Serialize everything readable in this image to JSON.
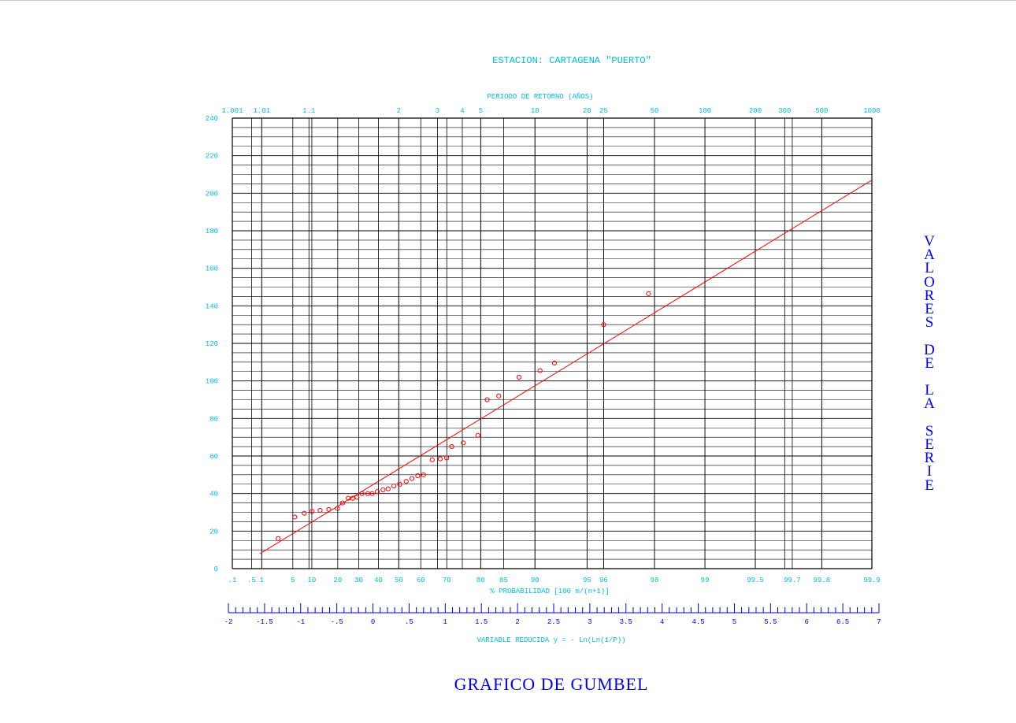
{
  "chart_data": {
    "type": "scatter",
    "title": "ESTACION: CARTAGENA \"PUERTO\"",
    "top_axis": {
      "label": "PERIODO DE RETORNO (AÑOS)",
      "ticks": [
        {
          "label": "1.001",
          "y": -1.933
        },
        {
          "label": "1.01",
          "y": -1.527
        },
        {
          "label": "1.1",
          "y": -0.874
        },
        {
          "label": "2",
          "y": 0.367
        },
        {
          "label": "3",
          "y": 0.903
        },
        {
          "label": "4",
          "y": 1.246
        },
        {
          "label": "5",
          "y": 1.5
        },
        {
          "label": "10",
          "y": 2.25
        },
        {
          "label": "20",
          "y": 2.97
        },
        {
          "label": "25",
          "y": 3.199
        },
        {
          "label": "50",
          "y": 3.902
        },
        {
          "label": "100",
          "y": 4.6
        },
        {
          "label": "200",
          "y": 5.296
        },
        {
          "label": "300",
          "y": 5.702
        },
        {
          "label": "500",
          "y": 6.214
        },
        {
          "label": "1000",
          "y": 6.907
        }
      ]
    },
    "bottom_axis": {
      "label": "% PROBABILIDAD  [100 m/(n+1)]",
      "ticks": [
        {
          "label": ".1",
          "y": -1.933
        },
        {
          "label": ".5",
          "y": -1.667
        },
        {
          "label": "1",
          "y": -1.527
        },
        {
          "label": "5",
          "y": -1.097
        },
        {
          "label": "10",
          "y": -0.834
        },
        {
          "label": "20",
          "y": -0.476
        },
        {
          "label": "30",
          "y": -0.186
        },
        {
          "label": "40",
          "y": 0.087
        },
        {
          "label": "50",
          "y": 0.367
        },
        {
          "label": "60",
          "y": 0.672
        },
        {
          "label": "70",
          "y": 1.031
        },
        {
          "label": "80",
          "y": 1.5
        },
        {
          "label": "85",
          "y": 1.817
        },
        {
          "label": "90",
          "y": 2.25
        },
        {
          "label": "95",
          "y": 2.97
        },
        {
          "label": "96",
          "y": 3.199
        },
        {
          "label": "98",
          "y": 3.902
        },
        {
          "label": "99",
          "y": 4.6
        },
        {
          "label": "99.5",
          "y": 5.296
        },
        {
          "label": "99.7",
          "y": 5.807
        },
        {
          "label": "99.8",
          "y": 6.214
        },
        {
          "label": "99.9",
          "y": 6.907
        }
      ]
    },
    "reduced_axis": {
      "label": "VARIABLE REDUCIDA   y = - Ln(Ln(1/P))",
      "range": [
        -2,
        7
      ],
      "labels": [
        "-2",
        "-1.5",
        "-1",
        "-.5",
        "0",
        ".5",
        "1",
        "1.5",
        "2",
        "2.5",
        "3",
        "3.5",
        "4",
        "4.5",
        "5",
        "5.5",
        "6",
        "6.5",
        "7"
      ]
    },
    "y_axis": {
      "label": "VALORES DE LA SERIE",
      "ylim": [
        0,
        240
      ],
      "ticks": [
        0,
        20,
        40,
        60,
        80,
        100,
        120,
        140,
        160,
        180,
        200,
        220,
        240
      ]
    },
    "fit_line": {
      "x": [
        -1.55,
        6.907
      ],
      "y": [
        8,
        207
      ]
    },
    "points": {
      "x": [
        -1.3,
        -1.07,
        -0.94,
        -0.83,
        -0.72,
        -0.6,
        -0.48,
        -0.41,
        -0.33,
        -0.27,
        -0.21,
        -0.14,
        -0.06,
        0.0,
        0.07,
        0.15,
        0.22,
        0.3,
        0.38,
        0.47,
        0.55,
        0.63,
        0.71,
        0.83,
        0.94,
        1.03,
        1.1,
        1.26,
        1.46,
        1.59,
        1.75,
        2.03,
        2.32,
        2.52,
        3.2,
        3.82
      ],
      "y": [
        16,
        27.5,
        29.5,
        30.5,
        31,
        31.5,
        32,
        35,
        37.5,
        37.5,
        38,
        40,
        40,
        40,
        41,
        42,
        42.5,
        44,
        45,
        46.5,
        48,
        49.5,
        50,
        58,
        58.5,
        59,
        65,
        67,
        71,
        90,
        92,
        102,
        105.5,
        109.5,
        130,
        146.5
      ]
    },
    "grid": true,
    "colors": {
      "axis_text": "#00bcd4",
      "grid": "#000000",
      "data": "#ff0000",
      "titles": "#0000ff"
    }
  },
  "labels": {
    "vertical_title": "VALORES DE LA SERIE",
    "bottom_title": "GRAFICO DE GUMBEL"
  }
}
